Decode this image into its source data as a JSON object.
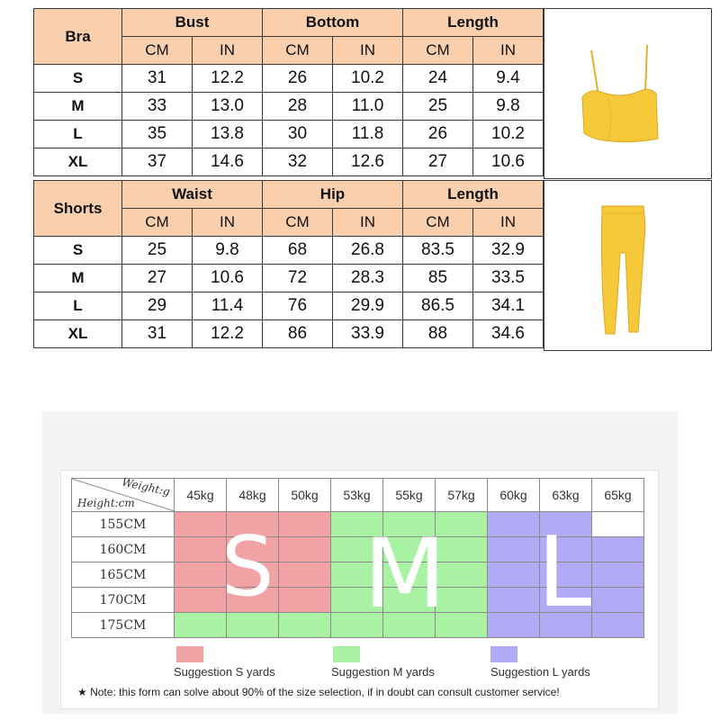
{
  "bra_table": {
    "title": "Bra",
    "groups": [
      "Bust",
      "Bottom",
      "Length"
    ],
    "units": [
      "CM",
      "IN",
      "CM",
      "IN",
      "CM",
      "IN"
    ],
    "rows": [
      {
        "size": "S",
        "values": [
          "31",
          "12.2",
          "26",
          "10.2",
          "24",
          "9.4"
        ]
      },
      {
        "size": "M",
        "values": [
          "33",
          "13.0",
          "28",
          "11.0",
          "25",
          "9.8"
        ]
      },
      {
        "size": "L",
        "values": [
          "35",
          "13.8",
          "30",
          "11.8",
          "26",
          "10.2"
        ]
      },
      {
        "size": "XL",
        "values": [
          "37",
          "14.6",
          "32",
          "12.6",
          "27",
          "10.6"
        ]
      }
    ]
  },
  "shorts_table": {
    "title": "Shorts",
    "groups": [
      "Waist",
      "Hip",
      "Length"
    ],
    "units": [
      "CM",
      "IN",
      "CM",
      "IN",
      "CM",
      "IN"
    ],
    "rows": [
      {
        "size": "S",
        "values": [
          "25",
          "9.8",
          "68",
          "26.8",
          "83.5",
          "32.9"
        ]
      },
      {
        "size": "M",
        "values": [
          "27",
          "10.6",
          "72",
          "28.3",
          "85",
          "33.5"
        ]
      },
      {
        "size": "L",
        "values": [
          "29",
          "11.4",
          "76",
          "29.9",
          "86.5",
          "34.1"
        ]
      },
      {
        "size": "XL",
        "values": [
          "31",
          "12.2",
          "86",
          "33.9",
          "88",
          "34.6"
        ]
      }
    ]
  },
  "product_images": {
    "bra_color": "#f6c93a",
    "shorts_color": "#f6c93a"
  },
  "suggestion_chart": {
    "corner_weight_label": "Weight:g",
    "corner_height_label": "Height:cm",
    "weights": [
      "45kg",
      "48kg",
      "50kg",
      "53kg",
      "55kg",
      "57kg",
      "60kg",
      "63kg",
      "65kg"
    ],
    "rows": [
      {
        "height": "155CM",
        "cells": [
          "S",
          "S",
          "S",
          "M",
          "M",
          "M",
          "L",
          "L",
          "W"
        ]
      },
      {
        "height": "160CM",
        "cells": [
          "S",
          "S",
          "S",
          "M",
          "M",
          "M",
          "L",
          "L",
          "L"
        ]
      },
      {
        "height": "165CM",
        "cells": [
          "S",
          "S",
          "S",
          "M",
          "M",
          "M",
          "L",
          "L",
          "L"
        ]
      },
      {
        "height": "170CM",
        "cells": [
          "S",
          "S",
          "S",
          "M",
          "M",
          "M",
          "L",
          "L",
          "L"
        ]
      },
      {
        "height": "175CM",
        "cells": [
          "M",
          "M",
          "M",
          "M",
          "M",
          "M",
          "L",
          "L",
          "L"
        ]
      }
    ],
    "colors": {
      "S": "#f2a2a4",
      "M": "#a9f2a4",
      "L": "#b2aaf4",
      "W": "#ffffff"
    },
    "big_letters": {
      "s": "S",
      "m": "M",
      "l": "L"
    },
    "legend": {
      "s": "Suggestion S yards",
      "m": "Suggestion M yards",
      "l": "Suggestion L yards"
    },
    "note": "★ Note: this form can solve about 90% of the size selection, if in doubt can consult customer service!"
  }
}
